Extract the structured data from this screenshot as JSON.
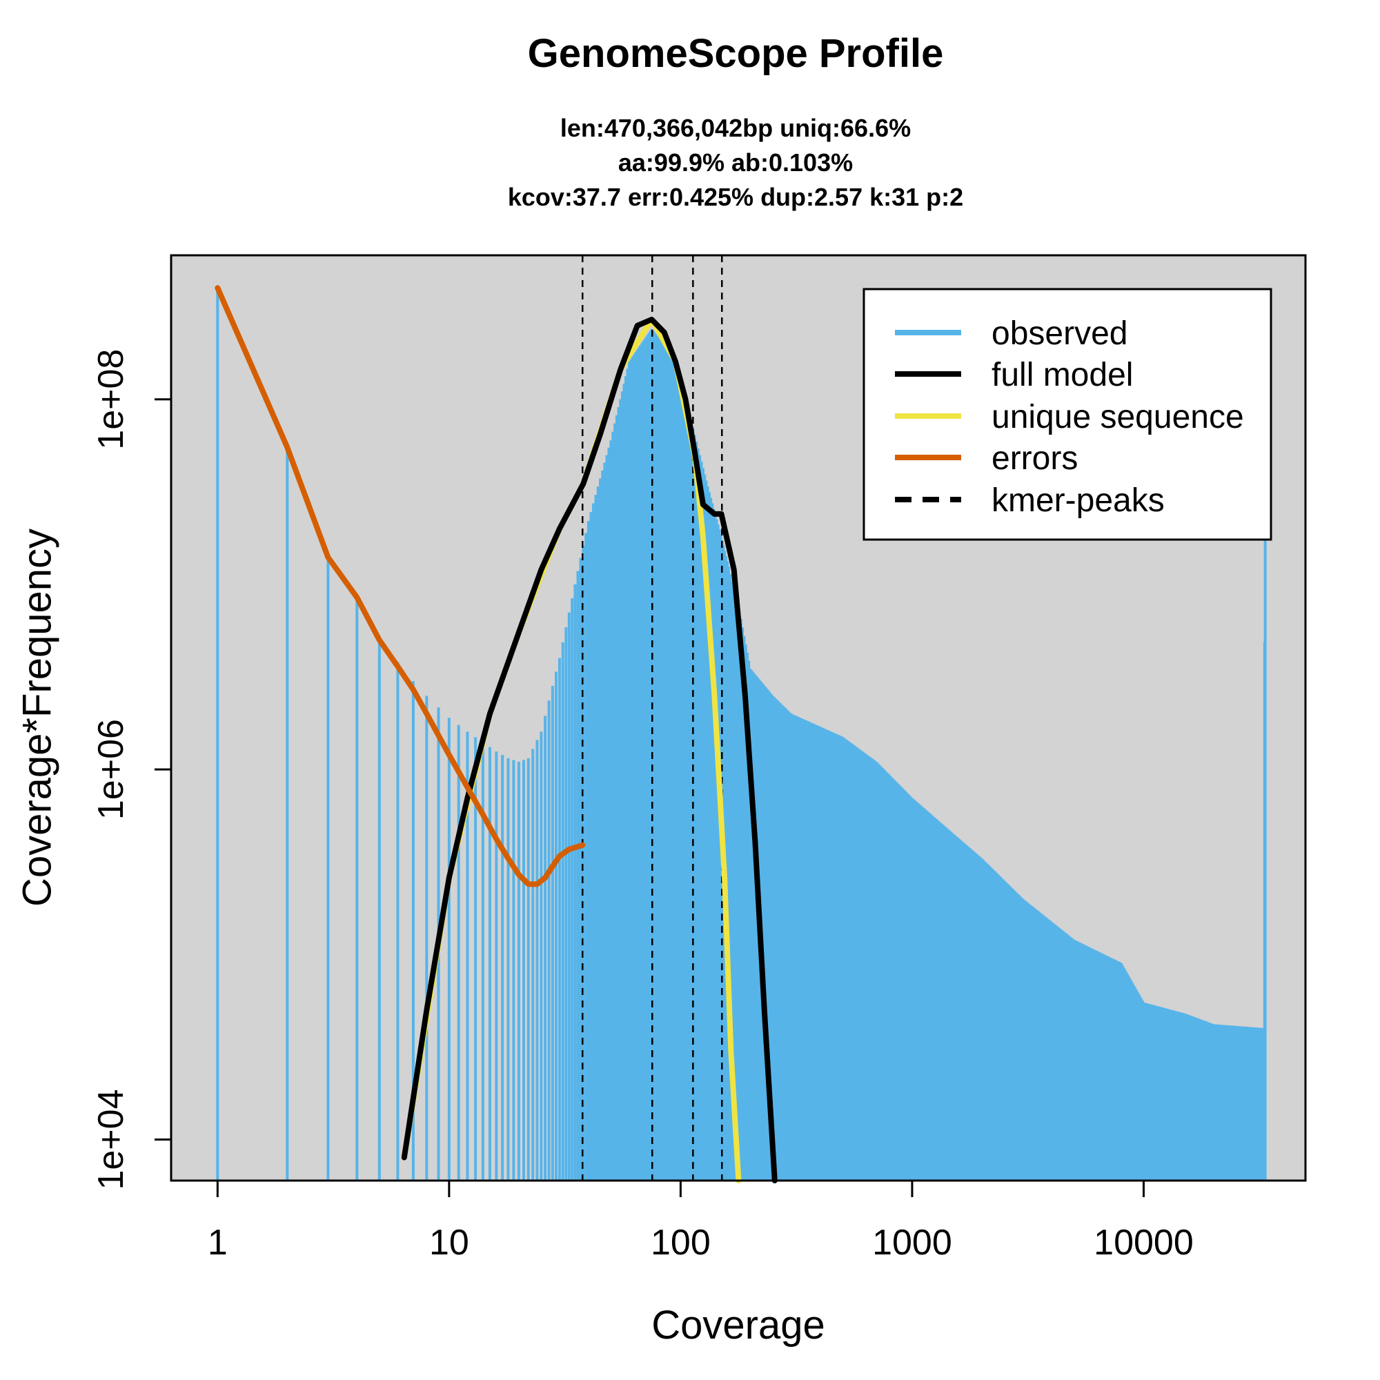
{
  "chart_data": {
    "type": "line",
    "title": "GenomeScope Profile",
    "subtitle": [
      "len:470,366,042bp uniq:66.6%",
      "aa:99.9% ab:0.103%",
      "kcov:37.7 err:0.425%  dup:2.57  k:31 p:2"
    ],
    "xlabel": "Coverage",
    "ylabel": "Coverage*Frequency",
    "x_scale": "log",
    "y_scale": "log",
    "xlim": [
      0.63,
      50000
    ],
    "ylim": [
      6000,
      600000000
    ],
    "x_ticks": [
      {
        "value": 1,
        "label": "1"
      },
      {
        "value": 10,
        "label": "10"
      },
      {
        "value": 100,
        "label": "100"
      },
      {
        "value": 1000,
        "label": "1000"
      },
      {
        "value": 10000,
        "label": "10000"
      }
    ],
    "y_ticks": [
      {
        "value": 10000,
        "label": "1e+04"
      },
      {
        "value": 1000000,
        "label": "1e+06"
      },
      {
        "value": 100000000,
        "label": "1e+08"
      }
    ],
    "legend_position": "top-right",
    "colors": {
      "background": "#d3d3d3",
      "observed": "#56b4e9",
      "full_model": "#000000",
      "unique": "#f0e442",
      "errors": "#d55e00"
    },
    "observed_envelope": [
      [
        1,
        400000000
      ],
      [
        2,
        55000000
      ],
      [
        3,
        14000000
      ],
      [
        4,
        8500000
      ],
      [
        5,
        5200000
      ],
      [
        6,
        3800000
      ],
      [
        7,
        3000000
      ],
      [
        8,
        2500000
      ],
      [
        10,
        1900000
      ],
      [
        12,
        1600000
      ],
      [
        14,
        1400000
      ],
      [
        16,
        1250000
      ],
      [
        18,
        1150000
      ],
      [
        20,
        1100000
      ],
      [
        22,
        1150000
      ],
      [
        25,
        1600000
      ],
      [
        30,
        4000000
      ],
      [
        35,
        10000000
      ],
      [
        40,
        22000000
      ],
      [
        50,
        60000000
      ],
      [
        60,
        160000000
      ],
      [
        75,
        240000000
      ],
      [
        90,
        180000000
      ],
      [
        110,
        80000000
      ],
      [
        130,
        35000000
      ],
      [
        150,
        18000000
      ],
      [
        180,
        7000000
      ],
      [
        200,
        3500000
      ],
      [
        250,
        2500000
      ],
      [
        300,
        2000000
      ],
      [
        400,
        1700000
      ],
      [
        500,
        1500000
      ],
      [
        700,
        1100000
      ],
      [
        1000,
        700000
      ],
      [
        1500,
        450000
      ],
      [
        2000,
        330000
      ],
      [
        3000,
        200000
      ],
      [
        5000,
        120000
      ],
      [
        8000,
        90000
      ],
      [
        10000,
        55000
      ],
      [
        15000,
        48000
      ],
      [
        20000,
        42000
      ],
      [
        33000,
        40000
      ],
      [
        33500,
        100000000
      ]
    ],
    "series": [
      {
        "name": "observed",
        "line_style": "solid"
      },
      {
        "name": "full model",
        "line_style": "solid",
        "x": [
          6.4,
          8,
          10,
          12,
          15,
          20,
          25,
          30,
          38,
          45,
          55,
          65,
          75,
          85,
          95,
          105,
          115,
          125,
          140,
          150,
          170,
          190,
          210,
          230,
          255
        ],
        "y": [
          8000,
          50000,
          260000,
          700000,
          2000000,
          5500000,
          12000000,
          20000000,
          35000000,
          65000000,
          145000000,
          250000000,
          270000000,
          230000000,
          160000000,
          100000000,
          52000000,
          27000000,
          24000000,
          24000000,
          12000000,
          2500000,
          400000,
          50000,
          6000
        ]
      },
      {
        "name": "unique sequence",
        "line_style": "solid",
        "x": [
          6.4,
          10,
          15,
          20,
          30,
          38,
          55,
          75,
          95,
          115,
          125,
          140,
          155,
          165,
          178
        ],
        "y": [
          8000,
          260000,
          2000000,
          5500000,
          20000000,
          35000000,
          145000000,
          270000000,
          160000000,
          50000000,
          18000000,
          2500000,
          250000,
          30000,
          6000
        ]
      },
      {
        "name": "errors",
        "line_style": "solid",
        "x": [
          1,
          2,
          3,
          4,
          5,
          6,
          7,
          8,
          10,
          12,
          14,
          16,
          18,
          20,
          22,
          24,
          26,
          28,
          30,
          33,
          37.7
        ],
        "y": [
          400000000,
          55000000,
          14000000,
          8500000,
          5000000,
          3600000,
          2700000,
          2000000,
          1200000,
          800000,
          570000,
          420000,
          330000,
          270000,
          240000,
          240000,
          260000,
          300000,
          340000,
          370000,
          390000
        ]
      },
      {
        "name": "kmer-peaks",
        "line_style": "dashed",
        "x": [
          37.7,
          75.4,
          113.1,
          150.8
        ]
      }
    ]
  }
}
